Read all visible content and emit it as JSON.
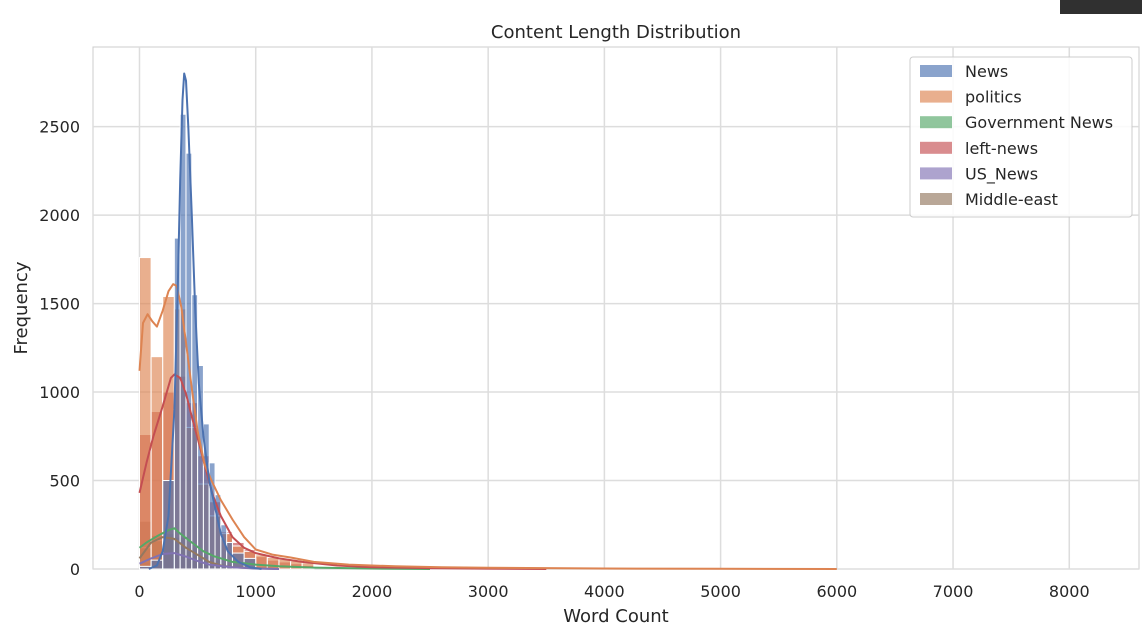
{
  "chart_data": {
    "type": "histogram",
    "title": "Content Length Distribution",
    "xlabel": "Word Count",
    "ylabel": "Frequency",
    "xlim": [
      -400,
      8600
    ],
    "ylim": [
      0,
      2950
    ],
    "xticks": [
      0,
      1000,
      2000,
      3000,
      4000,
      5000,
      6000,
      7000,
      8000
    ],
    "yticks": [
      0,
      500,
      1000,
      1500,
      2000,
      2500
    ],
    "grid": true,
    "legend_position": "top-right",
    "series": [
      {
        "name": "Middle-east",
        "color": "#937860",
        "bins": [
          [
            0,
            100,
            270
          ],
          [
            100,
            200,
            190
          ],
          [
            200,
            300,
            185
          ],
          [
            300,
            400,
            180
          ],
          [
            400,
            500,
            100
          ],
          [
            500,
            600,
            70
          ],
          [
            600,
            700,
            30
          ],
          [
            700,
            800,
            15
          ],
          [
            800,
            900,
            8
          ],
          [
            900,
            1000,
            5
          ]
        ],
        "kde": [
          [
            0,
            60
          ],
          [
            100,
            150
          ],
          [
            200,
            180
          ],
          [
            300,
            170
          ],
          [
            400,
            120
          ],
          [
            500,
            80
          ],
          [
            600,
            40
          ],
          [
            700,
            20
          ],
          [
            800,
            10
          ],
          [
            1000,
            4
          ],
          [
            1200,
            0
          ]
        ]
      },
      {
        "name": "US_News",
        "color": "#8172b3",
        "bins": [
          [
            0,
            100,
            40
          ],
          [
            100,
            200,
            70
          ],
          [
            200,
            300,
            90
          ],
          [
            300,
            400,
            85
          ],
          [
            400,
            500,
            60
          ],
          [
            500,
            600,
            40
          ],
          [
            600,
            700,
            25
          ],
          [
            700,
            800,
            15
          ],
          [
            800,
            900,
            10
          ],
          [
            900,
            1000,
            5
          ]
        ],
        "kde": [
          [
            0,
            30
          ],
          [
            100,
            60
          ],
          [
            200,
            85
          ],
          [
            300,
            90
          ],
          [
            400,
            70
          ],
          [
            500,
            45
          ],
          [
            600,
            25
          ],
          [
            800,
            10
          ],
          [
            1000,
            3
          ],
          [
            1200,
            0
          ]
        ]
      },
      {
        "name": "Government News",
        "color": "#55a868",
        "bins": [
          [
            0,
            100,
            120
          ],
          [
            100,
            200,
            160
          ],
          [
            200,
            300,
            200
          ],
          [
            300,
            400,
            180
          ],
          [
            400,
            500,
            120
          ],
          [
            500,
            600,
            80
          ],
          [
            600,
            700,
            50
          ],
          [
            700,
            800,
            30
          ],
          [
            800,
            900,
            20
          ],
          [
            900,
            1000,
            15
          ]
        ],
        "kde": [
          [
            0,
            120
          ],
          [
            60,
            150
          ],
          [
            150,
            185
          ],
          [
            250,
            220
          ],
          [
            300,
            230
          ],
          [
            350,
            200
          ],
          [
            450,
            150
          ],
          [
            550,
            100
          ],
          [
            650,
            70
          ],
          [
            800,
            40
          ],
          [
            1000,
            25
          ],
          [
            1200,
            15
          ],
          [
            1500,
            8
          ],
          [
            2000,
            3
          ],
          [
            2500,
            0
          ]
        ]
      },
      {
        "name": "left-news",
        "color": "#c44e52",
        "bins": [
          [
            0,
            100,
            760
          ],
          [
            100,
            200,
            890
          ],
          [
            200,
            300,
            1000
          ],
          [
            300,
            400,
            1090
          ],
          [
            400,
            500,
            940
          ],
          [
            500,
            600,
            640
          ],
          [
            600,
            700,
            380
          ],
          [
            700,
            800,
            210
          ],
          [
            800,
            900,
            150
          ],
          [
            900,
            1000,
            110
          ],
          [
            1000,
            1100,
            70
          ],
          [
            1100,
            1200,
            50
          ],
          [
            1200,
            1300,
            40
          ],
          [
            1300,
            1400,
            30
          ],
          [
            1400,
            1500,
            20
          ]
        ],
        "kde": [
          [
            0,
            430
          ],
          [
            60,
            600
          ],
          [
            120,
            750
          ],
          [
            200,
            920
          ],
          [
            270,
            1080
          ],
          [
            300,
            1100
          ],
          [
            350,
            1080
          ],
          [
            400,
            990
          ],
          [
            450,
            860
          ],
          [
            500,
            740
          ],
          [
            560,
            590
          ],
          [
            630,
            420
          ],
          [
            700,
            300
          ],
          [
            800,
            180
          ],
          [
            900,
            120
          ],
          [
            1000,
            90
          ],
          [
            1200,
            60
          ],
          [
            1400,
            40
          ],
          [
            1700,
            20
          ],
          [
            2000,
            10
          ],
          [
            2500,
            5
          ],
          [
            3000,
            2
          ],
          [
            3500,
            0
          ]
        ]
      },
      {
        "name": "politics",
        "color": "#dd8452",
        "bins": [
          [
            0,
            100,
            1760
          ],
          [
            100,
            200,
            1200
          ],
          [
            200,
            300,
            1540
          ],
          [
            300,
            400,
            1470
          ],
          [
            400,
            500,
            800
          ],
          [
            500,
            600,
            480
          ],
          [
            600,
            700,
            300
          ],
          [
            700,
            800,
            200
          ],
          [
            800,
            900,
            130
          ],
          [
            900,
            1000,
            100
          ],
          [
            1000,
            1100,
            80
          ],
          [
            1100,
            1200,
            65
          ],
          [
            1200,
            1300,
            55
          ],
          [
            1300,
            1400,
            45
          ],
          [
            1400,
            1500,
            35
          ]
        ],
        "kde": [
          [
            0,
            1120
          ],
          [
            30,
            1390
          ],
          [
            70,
            1440
          ],
          [
            110,
            1400
          ],
          [
            150,
            1370
          ],
          [
            200,
            1460
          ],
          [
            250,
            1570
          ],
          [
            290,
            1610
          ],
          [
            320,
            1600
          ],
          [
            360,
            1480
          ],
          [
            400,
            1280
          ],
          [
            450,
            1020
          ],
          [
            500,
            780
          ],
          [
            560,
            590
          ],
          [
            620,
            500
          ],
          [
            700,
            390
          ],
          [
            800,
            280
          ],
          [
            900,
            180
          ],
          [
            1000,
            110
          ],
          [
            1150,
            80
          ],
          [
            1300,
            65
          ],
          [
            1500,
            40
          ],
          [
            1800,
            25
          ],
          [
            2200,
            15
          ],
          [
            2600,
            10
          ],
          [
            3000,
            7
          ],
          [
            3500,
            5
          ],
          [
            4000,
            3
          ],
          [
            5000,
            1
          ],
          [
            6000,
            0
          ]
        ]
      },
      {
        "name": "News",
        "color": "#4c72b0",
        "bins": [
          [
            0,
            100,
            15
          ],
          [
            100,
            200,
            50
          ],
          [
            200,
            300,
            500
          ],
          [
            300,
            350,
            1870
          ],
          [
            350,
            400,
            2570
          ],
          [
            400,
            450,
            2350
          ],
          [
            450,
            500,
            1550
          ],
          [
            500,
            550,
            1150
          ],
          [
            550,
            600,
            820
          ],
          [
            600,
            650,
            600
          ],
          [
            650,
            700,
            420
          ],
          [
            700,
            750,
            250
          ],
          [
            750,
            800,
            150
          ],
          [
            800,
            900,
            90
          ],
          [
            900,
            1000,
            60
          ]
        ],
        "kde": [
          [
            80,
            0
          ],
          [
            150,
            20
          ],
          [
            200,
            100
          ],
          [
            250,
            300
          ],
          [
            300,
            900
          ],
          [
            330,
            1600
          ],
          [
            350,
            2200
          ],
          [
            370,
            2650
          ],
          [
            385,
            2800
          ],
          [
            400,
            2760
          ],
          [
            420,
            2500
          ],
          [
            450,
            2000
          ],
          [
            480,
            1450
          ],
          [
            510,
            1050
          ],
          [
            550,
            750
          ],
          [
            600,
            500
          ],
          [
            650,
            350
          ],
          [
            700,
            200
          ],
          [
            760,
            100
          ],
          [
            850,
            40
          ],
          [
            950,
            10
          ],
          [
            1050,
            0
          ]
        ]
      }
    ],
    "legend_entries": [
      {
        "name": "News",
        "color": "#4c72b0"
      },
      {
        "name": "politics",
        "color": "#dd8452"
      },
      {
        "name": "Government News",
        "color": "#55a868"
      },
      {
        "name": "left-news",
        "color": "#c44e52"
      },
      {
        "name": "US_News",
        "color": "#8172b3"
      },
      {
        "name": "Middle-east",
        "color": "#937860"
      }
    ]
  }
}
